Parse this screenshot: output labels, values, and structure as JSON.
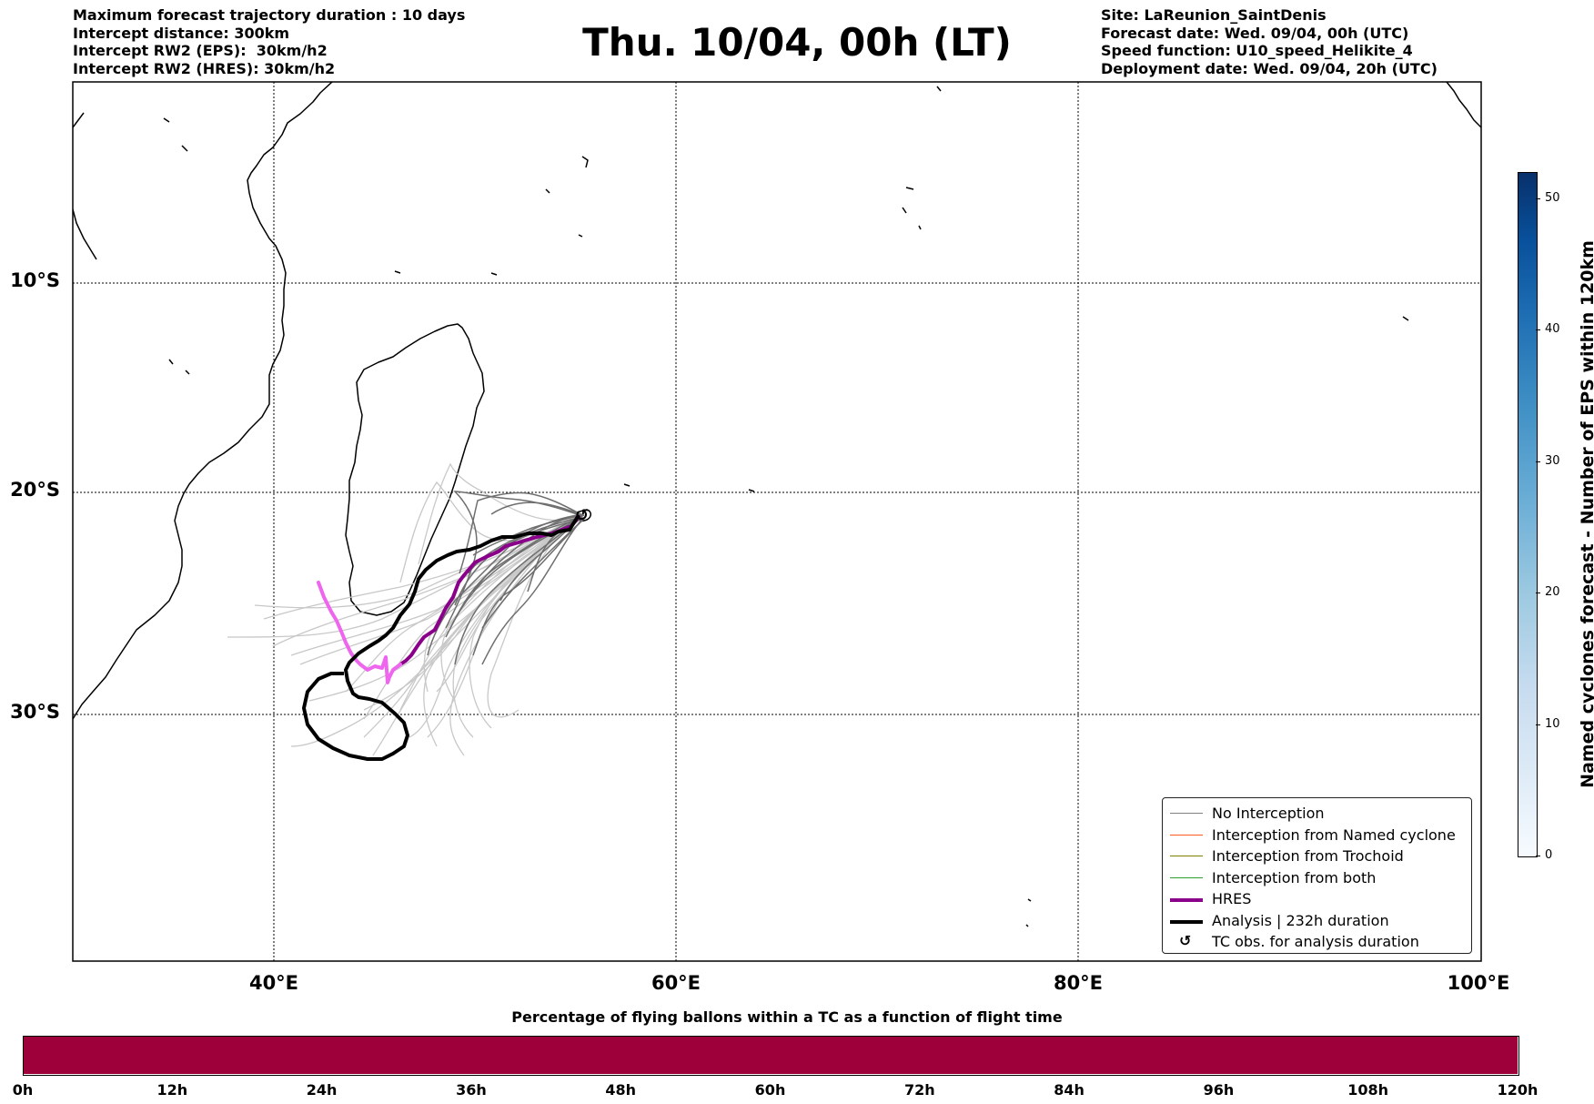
{
  "header": {
    "left_lines": [
      "Maximum forecast trajectory duration : 10 days",
      "Intercept distance: 300km",
      "Intercept RW2 (EPS):  30km/h2",
      "Intercept RW2 (HRES): 30km/h2"
    ],
    "title": "Thu. 10/04, 00h (LT)",
    "right_lines": [
      "Site: LaReunion_SaintDenis",
      "Forecast date: Wed. 09/04, 00h (UTC)",
      "Speed function: U10_speed_Helikite_4",
      "Deployment date: Wed. 09/04, 20h (UTC)"
    ]
  },
  "map": {
    "lat_labels": [
      "10°S",
      "20°S",
      "30°S"
    ],
    "lon_labels": [
      "40°E",
      "60°E",
      "80°E",
      "100°E"
    ],
    "extent": {
      "lon": [
        30,
        100
      ],
      "lat": [
        -42,
        0.5
      ]
    }
  },
  "legend": {
    "items": [
      {
        "label": "No Interception",
        "color": "#808080",
        "width": 1
      },
      {
        "label": "Interception from Named cyclone",
        "color": "#ff5a1f",
        "width": 1
      },
      {
        "label": "Interception from Trochoid",
        "color": "#808000",
        "width": 1
      },
      {
        "label": "Interception from both",
        "color": "#2e9e2e",
        "width": 1
      },
      {
        "label": "HRES",
        "color": "#8b008b",
        "width": 4
      },
      {
        "label": "Analysis | 232h duration",
        "color": "#000000",
        "width": 4
      }
    ],
    "tc_obs_label": "TC obs. for analysis duration",
    "tc_obs_glyph": "↺"
  },
  "colorbar": {
    "label": "Named cyclones forecast - Number of EPS within 120km",
    "ticks": [
      "0",
      "10",
      "20",
      "30",
      "40",
      "50"
    ],
    "range": [
      0,
      52
    ]
  },
  "timebar": {
    "title": "Percentage of flying ballons within a TC as a function of flight time",
    "color": "#9e003a",
    "ticks": [
      "0h",
      "12h",
      "24h",
      "36h",
      "48h",
      "60h",
      "72h",
      "84h",
      "96h",
      "108h",
      "120h"
    ]
  }
}
